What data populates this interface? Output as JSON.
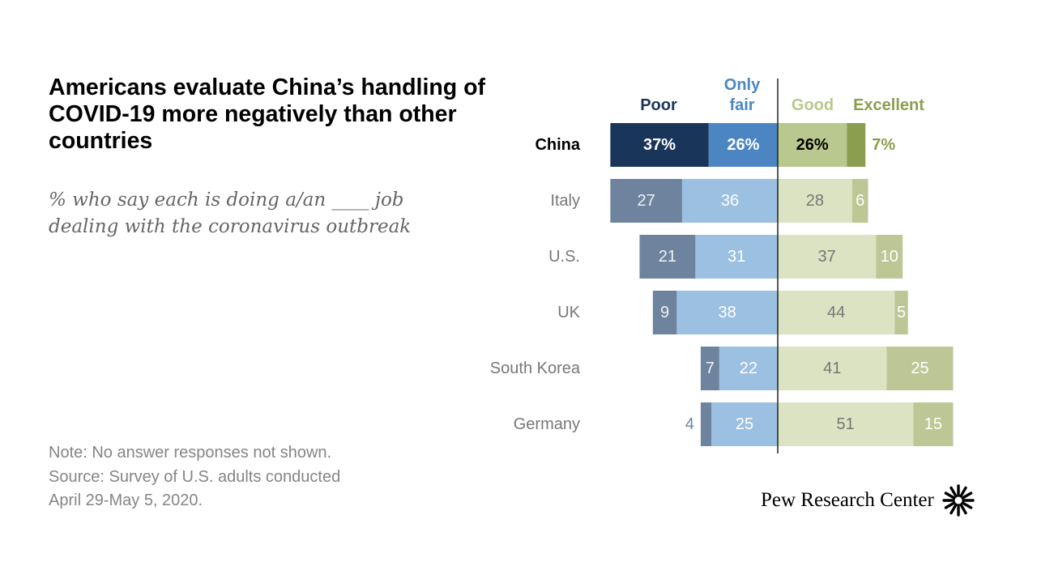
{
  "colors": {
    "poor_strong": "#1a355a",
    "only_fair_strong": "#4b86c3",
    "good_strong": "#b9c88e",
    "excellent_strong": "#8b9e4f",
    "poor": "#6e849e",
    "only_fair": "#9cc0e2",
    "good": "#dbe3c2",
    "excellent": "#bcc795",
    "divider": "#222222",
    "label_dark": "#000000",
    "label_muted": "#777777"
  },
  "header": {
    "title": "Americans evaluate China’s handling of COVID-19 more negatively than other countries",
    "subtitle": "% who say each is doing a/an ____ job dealing with the coronavirus outbreak"
  },
  "note": {
    "line1": "Note: No answer responses not shown.",
    "line2": "Source: Survey of U.S. adults conducted",
    "line3": "April 29-May 5, 2020."
  },
  "logo": {
    "text": "Pew Research Center",
    "icon": "pew-sunburst-icon"
  },
  "chart_data": {
    "type": "bar",
    "subtype": "diverging-stacked-horizontal",
    "title": "Americans evaluate China’s handling of COVID-19 more negatively than other countries",
    "subtitle": "% who say each is doing a/an ____ job dealing with the coronavirus outbreak",
    "unit": "%",
    "legend": [
      {
        "key": "poor",
        "label": "Poor",
        "color": "#1a355a"
      },
      {
        "key": "only_fair",
        "label": "Only fair",
        "color": "#4b86c3"
      },
      {
        "key": "good",
        "label": "Good",
        "color": "#b9c88e"
      },
      {
        "key": "excellent",
        "label": "Excellent",
        "color": "#8b9e4f"
      }
    ],
    "categories": [
      "China",
      "Italy",
      "U.S.",
      "UK",
      "South Korea",
      "Germany"
    ],
    "series": [
      {
        "name": "Poor",
        "side": "negative",
        "values": [
          37,
          27,
          21,
          9,
          7,
          4
        ],
        "labels": [
          "37%",
          "27",
          "21",
          "9",
          "7",
          "4"
        ]
      },
      {
        "name": "Only fair",
        "side": "negative",
        "values": [
          26,
          36,
          31,
          38,
          22,
          25
        ],
        "labels": [
          "26%",
          "36",
          "31",
          "38",
          "22",
          "25"
        ]
      },
      {
        "name": "Good",
        "side": "positive",
        "values": [
          26,
          28,
          37,
          44,
          41,
          51
        ],
        "labels": [
          "26%",
          "28",
          "37",
          "44",
          "41",
          "51"
        ]
      },
      {
        "name": "Excellent",
        "side": "positive",
        "values": [
          7,
          6,
          10,
          5,
          25,
          15
        ],
        "labels": [
          "7%",
          "6",
          "10",
          "5",
          "25",
          "15"
        ]
      }
    ],
    "highlight_category": "China",
    "xlim": [
      -63,
      90
    ]
  }
}
